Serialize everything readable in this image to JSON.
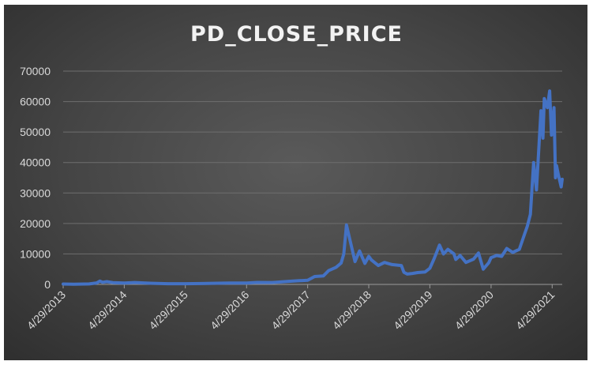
{
  "chart_data": {
    "type": "line",
    "title": "PD_CLOSE_PRICE",
    "xlabel": "",
    "ylabel": "",
    "ylim": [
      0,
      70000
    ],
    "y_ticks": [
      "0",
      "10000",
      "20000",
      "30000",
      "40000",
      "50000",
      "60000",
      "70000"
    ],
    "x_ticks": [
      "4/29/2013",
      "4/29/2014",
      "4/29/2015",
      "4/29/2016",
      "4/29/2017",
      "4/29/2018",
      "4/29/2019",
      "4/29/2020",
      "4/29/2021"
    ],
    "grid": true,
    "legend": "none",
    "line_color": "#4472c4",
    "series": [
      {
        "x": [
          "2013-04-29",
          "2013-07-01",
          "2013-10-01",
          "2013-11-15",
          "2013-12-05",
          "2013-12-20",
          "2014-01-15",
          "2014-02-20",
          "2014-04-29",
          "2014-07-01",
          "2014-10-01",
          "2015-01-15",
          "2015-04-29",
          "2015-08-01",
          "2015-11-05",
          "2016-01-15",
          "2016-04-29",
          "2016-07-01",
          "2016-10-01",
          "2017-01-05",
          "2017-03-01",
          "2017-04-29",
          "2017-06-10",
          "2017-08-01",
          "2017-09-01",
          "2017-10-15",
          "2017-11-15",
          "2017-12-01",
          "2017-12-17",
          "2018-01-05",
          "2018-02-06",
          "2018-03-05",
          "2018-04-06",
          "2018-04-29",
          "2018-05-15",
          "2018-06-25",
          "2018-08-01",
          "2018-09-15",
          "2018-11-10",
          "2018-11-25",
          "2018-12-15",
          "2019-01-15",
          "2019-02-15",
          "2019-04-01",
          "2019-04-29",
          "2019-05-25",
          "2019-06-26",
          "2019-07-20",
          "2019-08-15",
          "2019-09-20",
          "2019-10-01",
          "2019-10-27",
          "2019-12-01",
          "2020-01-15",
          "2020-02-14",
          "2020-03-13",
          "2020-04-15",
          "2020-04-29",
          "2020-06-01",
          "2020-07-01",
          "2020-08-01",
          "2020-09-05",
          "2020-10-15",
          "2020-11-15",
          "2020-12-01",
          "2020-12-20",
          "2021-01-08",
          "2021-01-25",
          "2021-02-21",
          "2021-03-05",
          "2021-03-13",
          "2021-04-01",
          "2021-04-14",
          "2021-04-25",
          "2021-05-10",
          "2021-05-19",
          "2021-05-25",
          "2021-06-05",
          "2021-06-22",
          "2021-06-28"
        ],
        "y": [
          130,
          90,
          150,
          500,
          1100,
          700,
          900,
          600,
          450,
          620,
          380,
          230,
          230,
          280,
          380,
          430,
          450,
          650,
          620,
          1000,
          1200,
          1350,
          2600,
          2800,
          4500,
          5600,
          7000,
          10000,
          19500,
          15000,
          7500,
          11000,
          6900,
          9200,
          8000,
          6200,
          7200,
          6500,
          6200,
          4000,
          3400,
          3600,
          3900,
          4100,
          5300,
          8500,
          12900,
          10000,
          11500,
          10000,
          8200,
          9500,
          7200,
          8300,
          10300,
          5000,
          7100,
          8800,
          9500,
          9200,
          11800,
          10500,
          11500,
          16500,
          19000,
          23000,
          40000,
          31000,
          57000,
          48000,
          61000,
          58000,
          63500,
          49000,
          58000,
          35000,
          39000,
          36000,
          32000,
          34500
        ]
      }
    ]
  }
}
